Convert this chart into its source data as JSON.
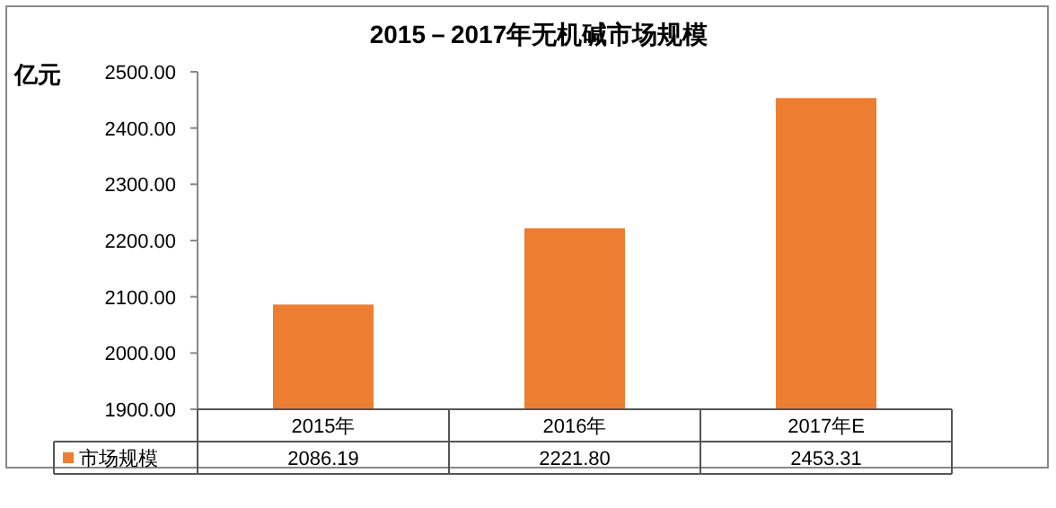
{
  "chart_data": {
    "type": "bar",
    "title": "2015－2017年无机碱市场规模",
    "ylabel": "亿元",
    "categories": [
      "2015年",
      "2016年",
      "2017年E"
    ],
    "series": [
      {
        "name": "市场规模",
        "color": "#ed7d31",
        "values": [
          2086.19,
          2221.8,
          2453.31
        ],
        "value_labels": [
          "2086.19",
          "2221.80",
          "2453.31"
        ]
      }
    ],
    "ylim": [
      1900,
      2500
    ],
    "yticks": [
      {
        "value": 1900,
        "label": "1900.00"
      },
      {
        "value": 2000,
        "label": "2000.00"
      },
      {
        "value": 2100,
        "label": "2100.00"
      },
      {
        "value": 2200,
        "label": "2200.00"
      },
      {
        "value": 2300,
        "label": "2300.00"
      },
      {
        "value": 2400,
        "label": "2400.00"
      },
      {
        "value": 2500,
        "label": "2500.00"
      }
    ],
    "grid": false
  }
}
